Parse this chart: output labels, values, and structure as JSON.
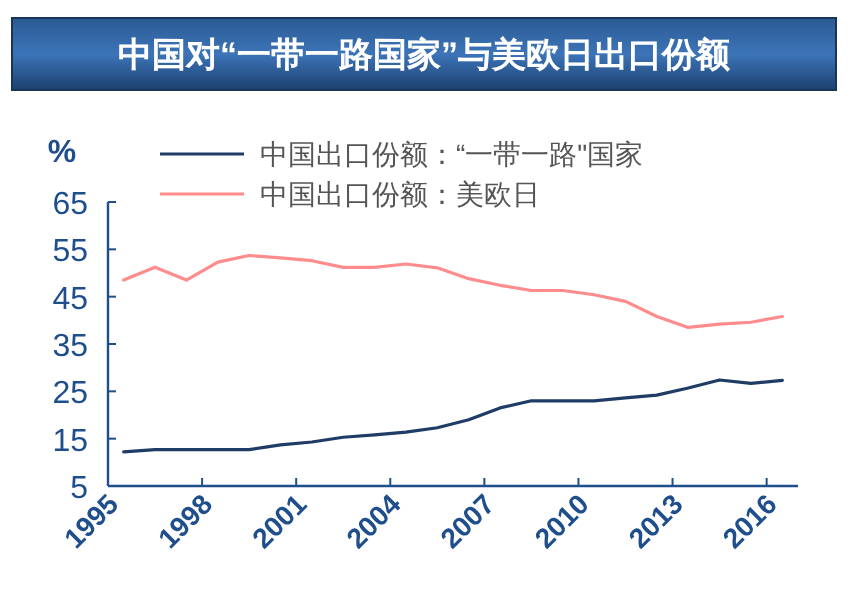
{
  "chart_data": {
    "type": "line",
    "title": "中国对“一带一路国家”与美欧日出口份额",
    "ylabel": "%",
    "x": [
      1995.5,
      1996.5,
      1997.5,
      1998.5,
      1999.5,
      2000.5,
      2001.5,
      2002.5,
      2003.5,
      2004.5,
      2005.5,
      2006.5,
      2007.5,
      2008.5,
      2009.5,
      2010.5,
      2011.5,
      2012.5,
      2013.5,
      2014.5,
      2015.5,
      2016.5
    ],
    "series": [
      {
        "name": "中国出口份额：“一带一路\"国家",
        "color": "#1f3c66",
        "values": [
          12.2,
          12.7,
          12.7,
          12.7,
          12.7,
          13.7,
          14.3,
          15.3,
          15.8,
          16.4,
          17.3,
          19.0,
          21.5,
          23.0,
          23.0,
          23.0,
          23.6,
          24.2,
          25.7,
          27.4,
          26.7,
          27.3
        ]
      },
      {
        "name": "中国出口份额：美欧日",
        "color": "#ff8c8c",
        "values": [
          48.5,
          51.2,
          48.5,
          52.3,
          53.7,
          53.2,
          52.6,
          51.2,
          51.2,
          51.9,
          51.1,
          48.8,
          47.4,
          46.3,
          46.3,
          45.4,
          44.0,
          40.8,
          38.5,
          39.2,
          39.6,
          40.8
        ]
      }
    ],
    "xlim": [
      1995,
      2017
    ],
    "xticks": [
      1995,
      1998,
      2001,
      2004,
      2007,
      2010,
      2013,
      2016
    ],
    "ylim": [
      5,
      65
    ],
    "yticks": [
      5,
      15,
      25,
      35,
      45,
      55,
      65
    ],
    "legend": "top",
    "grid": false,
    "marker": "none",
    "line_style": "solid"
  }
}
